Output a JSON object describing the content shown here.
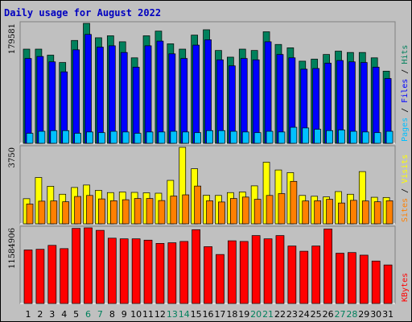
{
  "title": "Daily usage for August 2022",
  "colors": {
    "background": "#c0c0c0",
    "title": "#0000c0",
    "hits": "#00805c",
    "files": "#0000ff",
    "pages": "#00c0ff",
    "visits": "#ffff00",
    "sites": "#ff8000",
    "kbytes": "#ff0000",
    "axis_text": "#000000",
    "weekend_text": "#00805c"
  },
  "chart_data": [
    {
      "type": "bar",
      "panel": "hits-files-pages",
      "ymax_label": "179581",
      "ylim": [
        0,
        179581
      ],
      "legend": [
        "Pages",
        "Files",
        "Hits"
      ],
      "categories": [
        "1",
        "2",
        "3",
        "4",
        "5",
        "6",
        "7",
        "8",
        "9",
        "10",
        "11",
        "12",
        "13",
        "14",
        "15",
        "16",
        "17",
        "18",
        "19",
        "20",
        "21",
        "22",
        "23",
        "24",
        "25",
        "26",
        "27",
        "28",
        "29",
        "30",
        "31"
      ],
      "series": [
        {
          "name": "Hits",
          "values": [
            141000,
            141000,
            132000,
            121000,
            154000,
            179581,
            158000,
            161000,
            152000,
            128000,
            161000,
            168000,
            149000,
            141000,
            162000,
            170000,
            139000,
            129000,
            141000,
            139000,
            167000,
            148000,
            143000,
            123000,
            126000,
            133000,
            138000,
            136000,
            136000,
            128000,
            108000
          ]
        },
        {
          "name": "Files",
          "values": [
            127000,
            130000,
            122000,
            107000,
            140000,
            163000,
            144000,
            146000,
            136000,
            114000,
            146000,
            153000,
            134000,
            127000,
            147000,
            155000,
            125000,
            116000,
            127000,
            125000,
            152000,
            133000,
            128000,
            111000,
            112000,
            120000,
            124000,
            122000,
            121000,
            114000,
            97000
          ]
        },
        {
          "name": "Pages",
          "values": [
            15000,
            18000,
            19000,
            19000,
            15000,
            17000,
            16000,
            18000,
            17000,
            15000,
            17000,
            17000,
            18000,
            17000,
            16000,
            19000,
            19000,
            18000,
            17000,
            16000,
            18000,
            17000,
            24000,
            23000,
            21000,
            19000,
            20000,
            18000,
            17000,
            16000,
            18000
          ]
        }
      ]
    },
    {
      "type": "bar",
      "panel": "visits-sites",
      "ymax_label": "3750",
      "ylim": [
        0,
        3750
      ],
      "legend": [
        "Sites",
        "Visits"
      ],
      "categories": [
        "1",
        "2",
        "3",
        "4",
        "5",
        "6",
        "7",
        "8",
        "9",
        "10",
        "11",
        "12",
        "13",
        "14",
        "15",
        "16",
        "17",
        "18",
        "19",
        "20",
        "21",
        "22",
        "23",
        "24",
        "25",
        "26",
        "27",
        "28",
        "29",
        "30",
        "31"
      ],
      "series": [
        {
          "name": "Visits",
          "values": [
            1230,
            2270,
            1840,
            1450,
            1780,
            1900,
            1640,
            1530,
            1560,
            1540,
            1520,
            1500,
            2130,
            3750,
            2700,
            1400,
            1390,
            1530,
            1560,
            1860,
            3020,
            2640,
            2510,
            1390,
            1350,
            1320,
            1580,
            1450,
            2560,
            1300,
            1290
          ]
        },
        {
          "name": "Sites",
          "values": [
            970,
            1110,
            1120,
            1080,
            1340,
            1390,
            1220,
            1130,
            1180,
            1240,
            1240,
            1140,
            1360,
            1420,
            1850,
            1130,
            1070,
            1240,
            1310,
            1200,
            1390,
            1480,
            2080,
            1120,
            1130,
            1200,
            1020,
            1150,
            1120,
            1080,
            1130
          ]
        }
      ]
    },
    {
      "type": "bar",
      "panel": "kbytes",
      "ymax_label": "11584906",
      "ylim": [
        0,
        11584906
      ],
      "legend": [
        "KBytes"
      ],
      "categories": [
        "1",
        "2",
        "3",
        "4",
        "5",
        "6",
        "7",
        "8",
        "9",
        "10",
        "11",
        "12",
        "13",
        "14",
        "15",
        "16",
        "17",
        "18",
        "19",
        "20",
        "21",
        "22",
        "23",
        "24",
        "25",
        "26",
        "27",
        "28",
        "29",
        "30",
        "31"
      ],
      "series": [
        {
          "name": "KBytes",
          "values": [
            8200000,
            8300000,
            8900000,
            8400000,
            11500000,
            11584906,
            11200000,
            10000000,
            9900000,
            9900000,
            9700000,
            9200000,
            9300000,
            9500000,
            11300000,
            8700000,
            7500000,
            9600000,
            9500000,
            10400000,
            9900000,
            10400000,
            8800000,
            8000000,
            8800000,
            11400000,
            7700000,
            7800000,
            7400000,
            6500000,
            5900000
          ]
        }
      ]
    }
  ],
  "x_labels": [
    "1",
    "2",
    "3",
    "4",
    "5",
    "6",
    "7",
    "8",
    "9",
    "10",
    "11",
    "12",
    "13",
    "14",
    "15",
    "16",
    "17",
    "18",
    "19",
    "20",
    "21",
    "22",
    "23",
    "24",
    "25",
    "26",
    "27",
    "28",
    "29",
    "30",
    "31"
  ],
  "weekend_days": [
    "6",
    "7",
    "13",
    "14",
    "20",
    "21",
    "27",
    "28"
  ]
}
